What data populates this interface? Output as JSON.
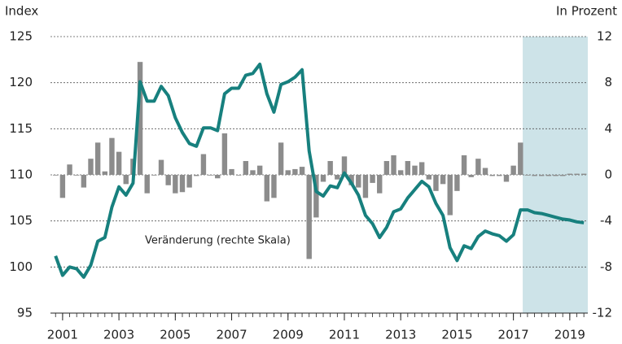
{
  "chart_data": {
    "type": "bar-line",
    "y_axis_label": "Index",
    "y2_axis_label": "In Prozent",
    "annotation": "Veränderung (rechte Skala)",
    "x": [
      2000.75,
      2001,
      2001.25,
      2001.5,
      2001.75,
      2002,
      2002.25,
      2002.5,
      2002.75,
      2003,
      2003.25,
      2003.5,
      2003.75,
      2004,
      2004.25,
      2004.5,
      2004.75,
      2005,
      2005.25,
      2005.5,
      2005.75,
      2006,
      2006.25,
      2006.5,
      2006.75,
      2007,
      2007.25,
      2007.5,
      2007.75,
      2008,
      2008.25,
      2008.5,
      2008.75,
      2009,
      2009.25,
      2009.5,
      2009.75,
      2010,
      2010.25,
      2010.5,
      2010.75,
      2011,
      2011.25,
      2011.5,
      2011.75,
      2012,
      2012.25,
      2012.5,
      2012.75,
      2013,
      2013.25,
      2013.5,
      2013.75,
      2014,
      2014.25,
      2014.5,
      2014.75,
      2015,
      2015.25,
      2015.5,
      2015.75,
      2016,
      2016.25,
      2016.5,
      2016.75,
      2017,
      2017.25,
      2017.5,
      2017.75,
      2018,
      2018.25,
      2018.5,
      2018.75,
      2019,
      2019.25,
      2019.5
    ],
    "series": [
      {
        "type": "bar",
        "axis": "y2",
        "color": "#8c8c8c",
        "values": [
          0,
          -2.0,
          0.9,
          0,
          -1.1,
          1.4,
          2.8,
          0.3,
          3.2,
          2.0,
          -0.8,
          1.4,
          9.8,
          -1.6,
          0,
          1.3,
          -0.9,
          -1.6,
          -1.5,
          -1.1,
          -0.1,
          1.8,
          0,
          -0.3,
          3.6,
          0.5,
          0,
          1.2,
          0.4,
          0.8,
          -2.3,
          -2.0,
          2.8,
          0.4,
          0.5,
          0.7,
          -7.3,
          -3.7,
          -0.6,
          1.2,
          -0.4,
          1.6,
          -0.9,
          -1.1,
          -2.0,
          -0.7,
          -1.6,
          1.2,
          1.7,
          0.4,
          1.2,
          0.8,
          1.1,
          -0.4,
          -1.4,
          -0.8,
          -3.5,
          -1.4,
          1.7,
          -0.2,
          1.4,
          0.6,
          -0.1,
          -0.1,
          -0.6,
          0.8,
          2.8,
          0,
          -0.1,
          -0.1,
          -0.1,
          -0.1,
          -0.1,
          0.1,
          0.1,
          0.1
        ]
      },
      {
        "type": "line",
        "axis": "y",
        "color": "#17807e",
        "values": [
          101.2,
          99.1,
          100.0,
          99.8,
          98.9,
          100.2,
          102.8,
          103.2,
          106.5,
          108.7,
          107.8,
          109.1,
          120.1,
          118.0,
          118.0,
          119.6,
          118.6,
          116.2,
          114.6,
          113.4,
          113.1,
          115.1,
          115.1,
          114.8,
          118.8,
          119.4,
          119.4,
          120.8,
          121.0,
          122.0,
          118.8,
          116.8,
          119.8,
          120.1,
          120.6,
          121.4,
          112.6,
          108.2,
          107.7,
          108.8,
          108.6,
          110.2,
          109.1,
          107.8,
          105.6,
          104.7,
          103.2,
          104.3,
          106.0,
          106.3,
          107.5,
          108.4,
          109.3,
          108.7,
          106.9,
          105.6,
          102.1,
          100.7,
          102.3,
          102.0,
          103.3,
          103.9,
          103.6,
          103.4,
          102.8,
          103.5,
          106.2,
          106.2,
          105.9,
          105.8,
          105.6,
          105.4,
          105.2,
          105.1,
          104.9,
          104.8
        ]
      }
    ],
    "xlim": [
      2000.57,
      2019.64
    ],
    "xticks": [
      2001,
      2003,
      2005,
      2007,
      2009,
      2011,
      2013,
      2015,
      2017,
      2019
    ],
    "ylim": [
      95,
      125
    ],
    "yticks": [
      95,
      100,
      105,
      110,
      115,
      120,
      125
    ],
    "y2lim": [
      -12,
      12
    ],
    "y2ticks": [
      -12,
      -8,
      -4,
      0,
      4,
      8,
      12
    ],
    "shaded_from": 2017.33,
    "shade_color": "#cde3e8",
    "grid": true
  }
}
